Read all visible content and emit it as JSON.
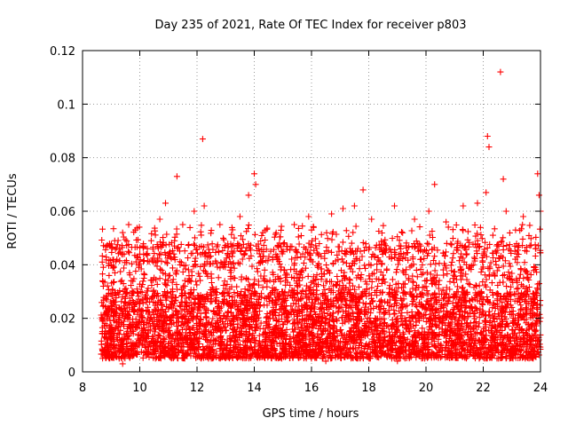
{
  "chart_data": {
    "type": "scatter",
    "title": "Day 235 of 2021, Rate Of TEC Index for receiver p803",
    "xlabel": "GPS time / hours",
    "ylabel": "ROTI / TECUs",
    "xlim": [
      8,
      24
    ],
    "ylim": [
      0,
      0.12
    ],
    "xticks": [
      8,
      10,
      12,
      14,
      16,
      18,
      20,
      22,
      24
    ],
    "yticks": [
      0,
      0.02,
      0.04,
      0.06,
      0.08,
      0.1,
      0.12
    ],
    "xtick_labels": [
      "8",
      "10",
      "12",
      "14",
      "16",
      "18",
      "20",
      "22",
      "24"
    ],
    "ytick_labels": [
      "0",
      "0.02",
      "0.04",
      "0.06",
      "0.08",
      "0.1",
      "0.12"
    ],
    "grid": true,
    "marker": "+",
    "color": "#ff0000",
    "series": [
      {
        "name": "ROTI",
        "x_range": [
          8.65,
          24.0
        ],
        "typical_range": [
          0.005,
          0.03
        ],
        "points": [
          [
            8.7,
            0.034
          ],
          [
            9.2,
            0.042
          ],
          [
            9.4,
            0.052
          ],
          [
            9.6,
            0.045
          ],
          [
            10.0,
            0.044
          ],
          [
            10.4,
            0.049
          ],
          [
            10.7,
            0.057
          ],
          [
            10.9,
            0.063
          ],
          [
            11.3,
            0.073
          ],
          [
            11.5,
            0.055
          ],
          [
            11.9,
            0.06
          ],
          [
            12.2,
            0.087
          ],
          [
            12.25,
            0.062
          ],
          [
            12.8,
            0.055
          ],
          [
            13.5,
            0.058
          ],
          [
            13.8,
            0.066
          ],
          [
            14.0,
            0.074
          ],
          [
            14.05,
            0.07
          ],
          [
            14.3,
            0.052
          ],
          [
            15.4,
            0.055
          ],
          [
            15.9,
            0.058
          ],
          [
            16.7,
            0.059
          ],
          [
            17.1,
            0.061
          ],
          [
            17.5,
            0.062
          ],
          [
            17.8,
            0.068
          ],
          [
            18.1,
            0.057
          ],
          [
            18.9,
            0.062
          ],
          [
            19.6,
            0.057
          ],
          [
            20.1,
            0.06
          ],
          [
            20.3,
            0.07
          ],
          [
            20.7,
            0.056
          ],
          [
            21.3,
            0.062
          ],
          [
            21.8,
            0.063
          ],
          [
            22.1,
            0.067
          ],
          [
            22.15,
            0.088
          ],
          [
            22.2,
            0.084
          ],
          [
            22.6,
            0.112
          ],
          [
            22.7,
            0.072
          ],
          [
            22.8,
            0.06
          ],
          [
            23.4,
            0.058
          ],
          [
            23.9,
            0.074
          ],
          [
            23.95,
            0.066
          ],
          [
            24.0,
            0.06
          ],
          [
            16.5,
            0.004
          ],
          [
            9.4,
            0.003
          ],
          [
            12.5,
            0.005
          ],
          [
            19.0,
            0.004
          ]
        ]
      }
    ]
  }
}
